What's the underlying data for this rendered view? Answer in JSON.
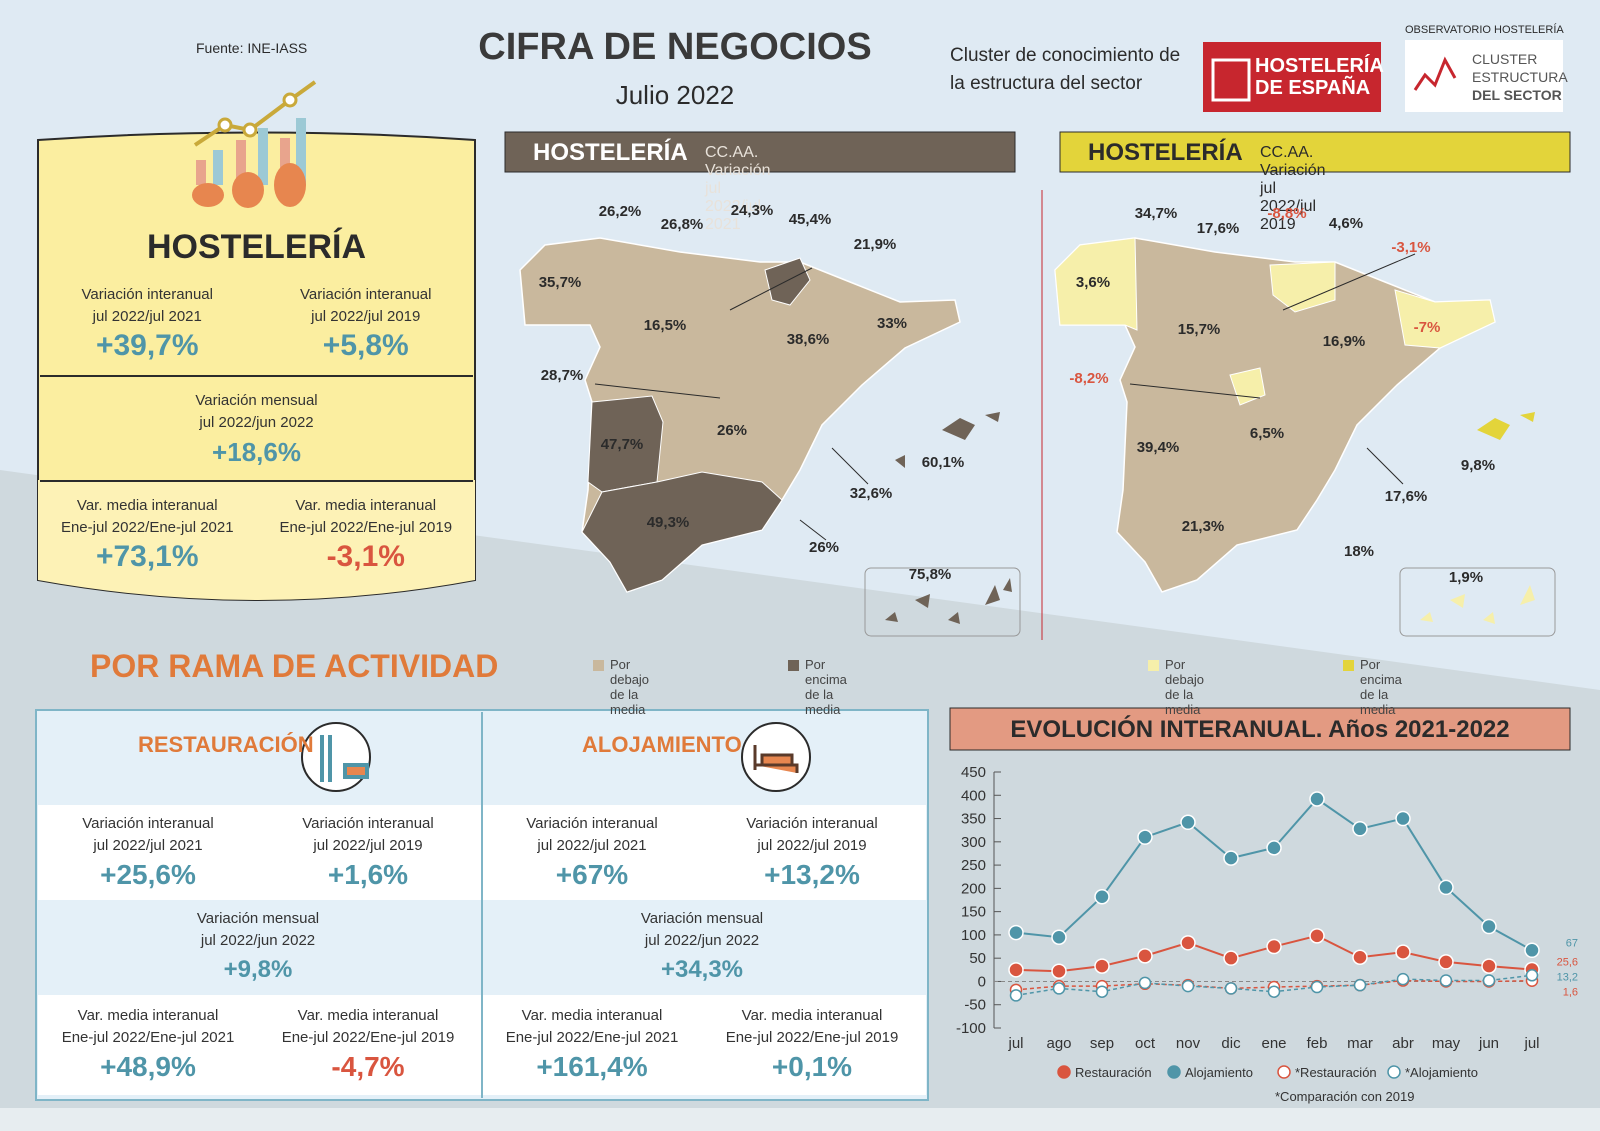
{
  "source": "Fuente: INE-IASS",
  "header": {
    "title": "CIFRA DE NEGOCIOS",
    "subtitle": "Julio 2022",
    "description": [
      "Cluster de conocimiento de",
      "la estructura del sector"
    ],
    "logo_main": [
      "HOSTELERÍA",
      "DE ESPAÑA"
    ],
    "logo_cluster_top": "OBSERVATORIO HOSTELERÍA",
    "logo_cluster": [
      "CLUSTER",
      "ESTRUCTURA",
      "DEL SECTOR"
    ]
  },
  "summary": {
    "title": "HOSTELERÍA",
    "rows": [
      [
        {
          "label": [
            "Variación interanual",
            "jul 2022/jul 2021"
          ],
          "value": "+39,7%"
        },
        {
          "label": [
            "Variación interanual",
            "jul 2022/jul 2019"
          ],
          "value": "+5,8%"
        }
      ],
      [
        {
          "label": [
            "Variación mensual",
            "jul 2022/jun 2022"
          ],
          "value": "+18,6%"
        }
      ],
      [
        {
          "label": [
            "Var. media interanual",
            "Ene-jul 2022/Ene-jul 2021"
          ],
          "value": "+73,1%"
        },
        {
          "label": [
            "Var. media interanual",
            "Ene-jul 2022/Ene-jul 2019"
          ],
          "value": "-3,1%"
        }
      ]
    ]
  },
  "maps": [
    {
      "title": "HOSTELERÍA",
      "subtitle": "CC.AA. Variación jul 2022/jul 2021",
      "labels": [
        "26,2%",
        "26,8%",
        "24,3%",
        "45,4%",
        "21,9%",
        "35,7%",
        "16,5%",
        "38,6%",
        "33%",
        "28,7%",
        "47,7%",
        "26%",
        "60,1%",
        "32,6%",
        "49,3%",
        "26%",
        "75,8%"
      ],
      "legend": [
        "Por debajo de la media",
        "Por encima de la media"
      ]
    },
    {
      "title": "HOSTELERÍA",
      "subtitle": "CC.AA. Variación jul 2022/jul 2019",
      "labels": [
        "34,7%",
        "17,6%",
        "-8,8%",
        "4,6%",
        "-3,1%",
        "3,6%",
        "15,7%",
        "16,9%",
        "-7%",
        "-8,2%",
        "39,4%",
        "6,5%",
        "9,8%",
        "17,6%",
        "21,3%",
        "18%",
        "1,9%"
      ],
      "legend": [
        "Por debajo de la media",
        "Por encima de la media"
      ]
    }
  ],
  "activity": {
    "title": "POR RAMA DE ACTIVIDAD",
    "branches": [
      {
        "name": "RESTAURACIÓN",
        "rows": [
          [
            {
              "label": [
                "Variación interanual",
                "jul 2022/jul 2021"
              ],
              "value": "+25,6%"
            },
            {
              "label": [
                "Variación interanual",
                "jul 2022/jul 2019"
              ],
              "value": "+1,6%"
            }
          ],
          [
            {
              "label": [
                "Variación mensual",
                "jul 2022/jun 2022"
              ],
              "value": "+9,8%"
            }
          ],
          [
            {
              "label": [
                "Var. media interanual",
                "Ene-jul 2022/Ene-jul 2021"
              ],
              "value": "+48,9%"
            },
            {
              "label": [
                "Var. media interanual",
                "Ene-jul 2022/Ene-jul 2019"
              ],
              "value": "-4,7%"
            }
          ]
        ]
      },
      {
        "name": "ALOJAMIENTO",
        "rows": [
          [
            {
              "label": [
                "Variación interanual",
                "jul 2022/jul 2021"
              ],
              "value": "+67%"
            },
            {
              "label": [
                "Variación interanual",
                "jul 2022/jul 2019"
              ],
              "value": "+13,2%"
            }
          ],
          [
            {
              "label": [
                "Variación mensual",
                "jul 2022/jun 2022"
              ],
              "value": "+34,3%"
            }
          ],
          [
            {
              "label": [
                "Var. media interanual",
                "Ene-jul 2022/Ene-jul 2021"
              ],
              "value": "+161,4%"
            },
            {
              "label": [
                "Var. media interanual",
                "Ene-jul 2022/Ene-jul 2019"
              ],
              "value": "+0,1%"
            }
          ]
        ]
      }
    ]
  },
  "chart_data": {
    "type": "line",
    "title": "EVOLUCIÓN INTERANUAL. Años 2021-2022",
    "note": "*Comparación con 2019",
    "categories": [
      "jul",
      "ago",
      "sep",
      "oct",
      "nov",
      "dic",
      "ene",
      "feb",
      "mar",
      "abr",
      "may",
      "jun",
      "jul"
    ],
    "ylim": [
      -100,
      450
    ],
    "yticks": [
      -100,
      -50,
      0,
      50,
      100,
      150,
      200,
      250,
      300,
      350,
      400,
      450
    ],
    "legend": "bottom",
    "series": [
      {
        "name": "Restauración",
        "color": "#d9553f",
        "marker": "filled",
        "dashed": false,
        "values": [
          25,
          22,
          33,
          55,
          83,
          50,
          75,
          98,
          52,
          63,
          42,
          33,
          25.6
        ],
        "value_labels": [
          null,
          null,
          null,
          null,
          null,
          null,
          null,
          null,
          null,
          null,
          null,
          null,
          "25,6"
        ]
      },
      {
        "name": "Alojamiento",
        "color": "#4f95a8",
        "marker": "filled",
        "dashed": false,
        "values": [
          105,
          95,
          182,
          310,
          342,
          265,
          287,
          392,
          328,
          350,
          202,
          118,
          67
        ],
        "value_labels": [
          null,
          null,
          null,
          null,
          null,
          null,
          null,
          null,
          null,
          null,
          null,
          null,
          "67"
        ]
      },
      {
        "name": "*Restauración",
        "color": "#d9553f",
        "marker": "hollow",
        "dashed": true,
        "values": [
          -18,
          -10,
          -10,
          -5,
          -8,
          -15,
          -12,
          -10,
          -8,
          2,
          0,
          0,
          1.6
        ],
        "value_labels": [
          null,
          null,
          null,
          null,
          null,
          null,
          null,
          null,
          null,
          null,
          null,
          null,
          "1,6"
        ]
      },
      {
        "name": "*Alojamiento",
        "color": "#4f95a8",
        "marker": "hollow",
        "dashed": true,
        "values": [
          -30,
          -15,
          -22,
          -3,
          -10,
          -15,
          -22,
          -12,
          -8,
          5,
          2,
          2,
          13.2
        ],
        "value_labels": [
          null,
          null,
          null,
          null,
          null,
          null,
          null,
          null,
          null,
          null,
          null,
          null,
          "13,2"
        ]
      }
    ]
  }
}
